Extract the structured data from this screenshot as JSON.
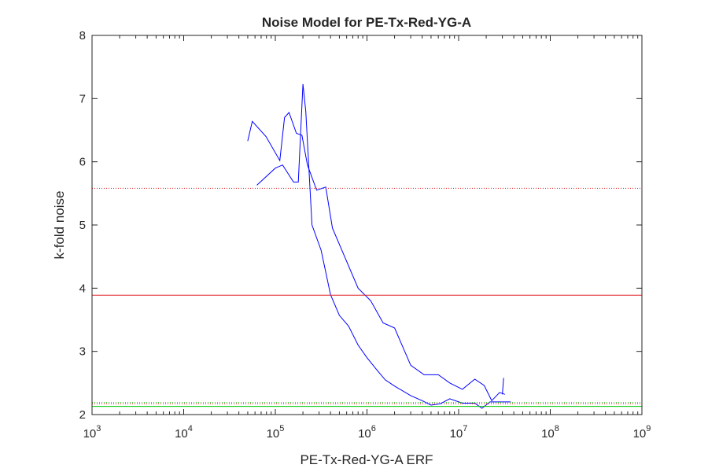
{
  "chart_data": {
    "type": "line",
    "title": "Noise Model for PE-Tx-Red-YG-A",
    "xlabel": "PE-Tx-Red-YG-A ERF",
    "ylabel": "k-fold noise",
    "x_scale": "log",
    "xlim": [
      1000,
      1000000000
    ],
    "ylim": [
      2,
      8
    ],
    "grid": false,
    "x_ticks": [
      {
        "value": 1000,
        "base": "10",
        "exp": "3"
      },
      {
        "value": 10000,
        "base": "10",
        "exp": "4"
      },
      {
        "value": 100000,
        "base": "10",
        "exp": "5"
      },
      {
        "value": 1000000,
        "base": "10",
        "exp": "6"
      },
      {
        "value": 10000000,
        "base": "10",
        "exp": "7"
      },
      {
        "value": 100000000,
        "base": "10",
        "exp": "8"
      },
      {
        "value": 1000000000,
        "base": "10",
        "exp": "9"
      }
    ],
    "y_ticks": [
      2,
      3,
      4,
      5,
      6,
      7,
      8
    ],
    "series": [
      {
        "color": "#0000ff",
        "style": "solid",
        "x": [
          50000,
          56000,
          79000,
          112000,
          126000,
          141000,
          170000,
          195000,
          224000,
          282000,
          355000,
          420000,
          550000,
          800000,
          1100000,
          1500000,
          2000000,
          3000000,
          4200000,
          6000000,
          8000000,
          11000000,
          15000000,
          19000000,
          23000000,
          28000000,
          32000000
        ],
        "y": [
          6.33,
          6.64,
          6.4,
          6.02,
          6.7,
          6.78,
          6.45,
          6.42,
          5.95,
          5.55,
          5.6,
          4.95,
          4.55,
          4.0,
          3.8,
          3.45,
          3.37,
          2.78,
          2.63,
          2.63,
          2.5,
          2.4,
          2.56,
          2.46,
          2.22,
          2.35,
          2.32
        ]
      },
      {
        "color": "#0000ff",
        "style": "solid",
        "x": [
          63000,
          100000,
          120000,
          158000,
          178000,
          200000,
          215000,
          251000,
          316000,
          400000,
          500000,
          630000,
          800000,
          1000000,
          1260000,
          1580000,
          2000000,
          3000000,
          4000000,
          5000000,
          6300000,
          8000000,
          11000000,
          15000000,
          18000000,
          22000000,
          30000000,
          37000000
        ],
        "y": [
          5.63,
          5.9,
          5.95,
          5.68,
          5.68,
          7.23,
          6.8,
          5.0,
          4.6,
          3.9,
          3.57,
          3.4,
          3.1,
          2.9,
          2.72,
          2.55,
          2.45,
          2.3,
          2.22,
          2.15,
          2.17,
          2.25,
          2.18,
          2.18,
          2.1,
          2.2,
          2.2,
          2.2
        ]
      },
      {
        "color": "#0000ff",
        "style": "solid",
        "x": [
          30000000,
          31000000
        ],
        "y": [
          2.32,
          2.58
        ]
      },
      {
        "color": "#e01e1e",
        "style": "solid",
        "x": [
          1000,
          1000000000
        ],
        "y": [
          3.89,
          3.89
        ]
      },
      {
        "color": "#e01e1e",
        "style": "dotted",
        "x": [
          1000,
          1000000000
        ],
        "y": [
          5.58,
          5.58
        ]
      },
      {
        "color": "#e01e1e",
        "style": "dotted",
        "x": [
          1000,
          1000000000
        ],
        "y": [
          2.17,
          2.17
        ]
      },
      {
        "color": "#00c800",
        "style": "solid",
        "x": [
          1000,
          1000000000
        ],
        "y": [
          2.13,
          2.13
        ]
      },
      {
        "color": "#00c800",
        "style": "dotted",
        "x": [
          1000,
          1000000000
        ],
        "y": [
          2.19,
          2.19
        ]
      }
    ]
  }
}
